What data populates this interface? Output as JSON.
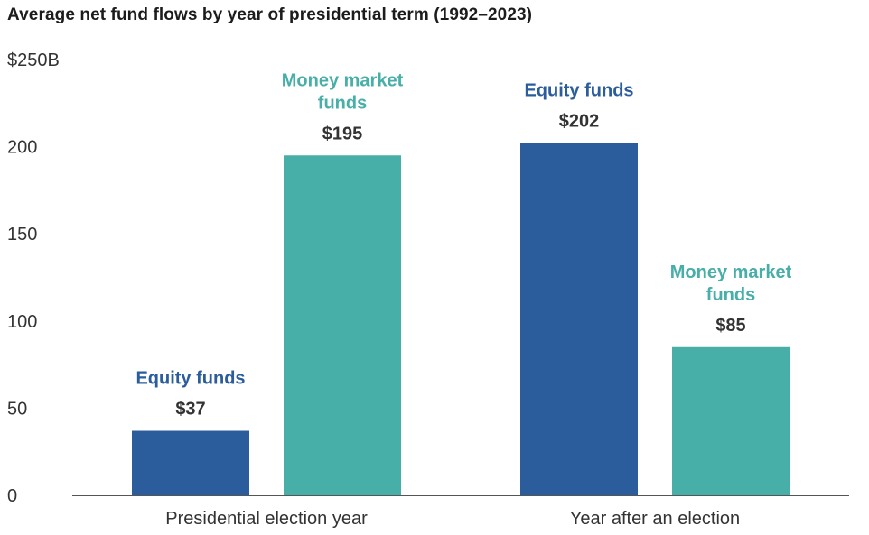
{
  "chart_data": {
    "type": "bar",
    "title": "Average net fund flows by year of presidential term (1992–2023)",
    "categories": [
      "Presidential election year",
      "Year after an election"
    ],
    "series": [
      {
        "name": "Equity funds",
        "label_lines": [
          "Equity funds"
        ],
        "color": "#2b5d9c",
        "values": [
          37,
          202
        ],
        "value_labels": [
          "$37",
          "$202"
        ]
      },
      {
        "name": "Money market funds",
        "label_lines": [
          "Money market",
          "funds"
        ],
        "color": "#47aea8",
        "values": [
          195,
          85
        ],
        "value_labels": [
          "$195",
          "$85"
        ]
      }
    ],
    "ylim": [
      0,
      250
    ],
    "yticks": [
      0,
      50,
      100,
      150,
      200,
      250
    ],
    "ytick_labels": [
      "0",
      "50",
      "100",
      "150",
      "200",
      "$250B"
    ],
    "xlabel": "",
    "ylabel": "",
    "grid": false,
    "legend": "none"
  }
}
